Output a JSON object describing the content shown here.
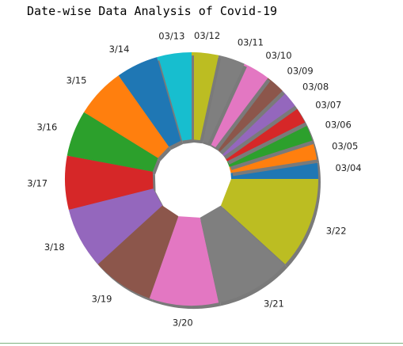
{
  "chart_data": {
    "type": "pie",
    "title": "Date-wise Data Analysis of Covid-19",
    "categories": [
      "03/04",
      "03/05",
      "03/06",
      "03/07",
      "03/08",
      "03/09",
      "03/10",
      "03/11",
      "03/12",
      "03/13",
      "3/14",
      "3/15",
      "3/16",
      "3/17",
      "3/18",
      "3/19",
      "3/20",
      "3/21",
      "3/22"
    ],
    "values": [
      2.5,
      2.5,
      2.5,
      2.5,
      2.5,
      2.5,
      3.5,
      3.5,
      3.5,
      4.5,
      5.5,
      6.5,
      6,
      7,
      8,
      8,
      9,
      10,
      12
    ],
    "colors": [
      "#1f77b4",
      "#ff7f0e",
      "#2ca02c",
      "#d62728",
      "#9467bd",
      "#8c564b",
      "#e377c2",
      "#7f7f7f",
      "#bcbd22",
      "#17becf",
      "#1f77b4",
      "#ff7f0e",
      "#2ca02c",
      "#d62728",
      "#9467bd",
      "#8c564b",
      "#e377c2",
      "#7f7f7f",
      "#bcbd22"
    ],
    "start_angle_deg": 0,
    "direction": "counterclockwise",
    "exploded": true,
    "shadow": true,
    "legend": "none"
  }
}
